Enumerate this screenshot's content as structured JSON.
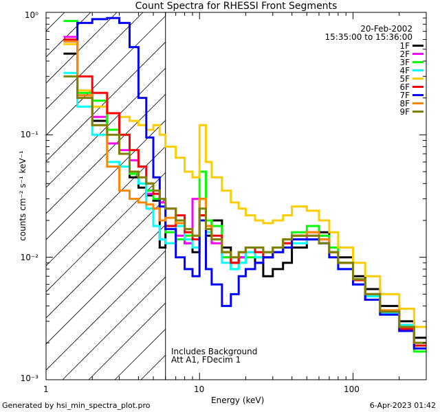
{
  "chart_data": {
    "type": "line",
    "title": "Count Spectra for RHESSI Front Segments",
    "xlabel": "Energy (keV)",
    "ylabel": "counts cm⁻² s⁻¹ keV⁻¹",
    "xscale": "log",
    "yscale": "log",
    "xlim": [
      1,
      300
    ],
    "ylim": [
      0.001,
      1
    ],
    "x_ticks": [
      {
        "v": 1,
        "label": "1"
      },
      {
        "v": 10,
        "label": "10"
      },
      {
        "v": 100,
        "label": "100"
      }
    ],
    "y_ticks": [
      {
        "v": 1,
        "label": "10⁰"
      },
      {
        "v": 0.1,
        "label": "10⁻¹"
      },
      {
        "v": 0.01,
        "label": "10⁻²"
      },
      {
        "v": 0.001,
        "label": "10⁻³"
      }
    ],
    "shaded_region_keV": [
      1,
      6
    ],
    "header": {
      "date": "20-Feb-2002",
      "time_range": "15:35:00 to 15:36:00"
    },
    "annotation": [
      "Includes Background",
      "Att A1, FDecim  1"
    ],
    "energy_edges_keV": [
      1.3,
      1.6,
      2,
      2.5,
      3,
      3.5,
      4,
      4.5,
      5,
      5.5,
      6,
      7,
      8,
      9,
      10,
      11,
      12,
      14,
      16,
      18,
      20,
      23,
      26,
      30,
      35,
      40,
      50,
      60,
      70,
      80,
      100,
      120,
      150,
      200,
      250,
      300
    ],
    "series": [
      {
        "name": "1F",
        "color": "#000000",
        "values": [
          0.46,
          0.21,
          0.13,
          0.11,
          0.07,
          0.045,
          0.037,
          0.032,
          0.029,
          0.012,
          0.018,
          0.02,
          0.013,
          0.011,
          0.03,
          0.015,
          0.02,
          0.012,
          0.009,
          0.01,
          0.012,
          0.009,
          0.007,
          0.008,
          0.009,
          0.012,
          0.014,
          0.016,
          0.012,
          0.01,
          0.007,
          0.0055,
          0.004,
          0.003,
          0.0022
        ]
      },
      {
        "name": "2F",
        "color": "#ff00ff",
        "values": [
          0.63,
          0.21,
          0.14,
          0.085,
          0.075,
          0.062,
          0.055,
          0.033,
          0.03,
          0.028,
          0.025,
          0.015,
          0.013,
          0.03,
          0.022,
          0.02,
          0.013,
          0.01,
          0.009,
          0.01,
          0.011,
          0.012,
          0.01,
          0.011,
          0.013,
          0.014,
          0.015,
          0.015,
          0.011,
          0.009,
          0.006,
          0.0045,
          0.0035,
          0.0028,
          0.0018
        ]
      },
      {
        "name": "3F",
        "color": "#00ff00",
        "values": [
          0.85,
          0.22,
          0.19,
          0.11,
          0.1,
          0.048,
          0.04,
          0.035,
          0.03,
          0.026,
          0.016,
          0.014,
          0.015,
          0.012,
          0.05,
          0.02,
          0.018,
          0.01,
          0.008,
          0.009,
          0.01,
          0.01,
          0.011,
          0.012,
          0.014,
          0.016,
          0.018,
          0.015,
          0.012,
          0.009,
          0.0065,
          0.005,
          0.0035,
          0.0025,
          0.0017
        ]
      },
      {
        "name": "4F",
        "color": "#00ffff",
        "values": [
          0.32,
          0.17,
          0.1,
          0.06,
          0.055,
          0.05,
          0.04,
          0.025,
          0.018,
          0.014,
          0.013,
          0.018,
          0.014,
          0.012,
          0.02,
          0.016,
          0.014,
          0.009,
          0.008,
          0.009,
          0.011,
          0.01,
          0.01,
          0.011,
          0.012,
          0.013,
          0.014,
          0.013,
          0.011,
          0.008,
          0.006,
          0.0048,
          0.0035,
          0.0028,
          0.0019
        ]
      },
      {
        "name": "5F",
        "color": "#ffcc00",
        "values": [
          0.55,
          0.23,
          0.17,
          0.15,
          0.14,
          0.13,
          0.12,
          0.11,
          0.12,
          0.1,
          0.08,
          0.065,
          0.05,
          0.045,
          0.12,
          0.06,
          0.045,
          0.035,
          0.028,
          0.025,
          0.022,
          0.02,
          0.019,
          0.02,
          0.022,
          0.026,
          0.024,
          0.02,
          0.016,
          0.012,
          0.009,
          0.007,
          0.005,
          0.0038,
          0.0027
        ]
      },
      {
        "name": "6F",
        "color": "#ff0000",
        "values": [
          0.6,
          0.3,
          0.22,
          0.15,
          0.1,
          0.075,
          0.055,
          0.04,
          0.033,
          0.02,
          0.018,
          0.022,
          0.016,
          0.014,
          0.022,
          0.018,
          0.015,
          0.011,
          0.009,
          0.011,
          0.012,
          0.011,
          0.01,
          0.012,
          0.013,
          0.015,
          0.016,
          0.014,
          0.011,
          0.009,
          0.0065,
          0.005,
          0.0036,
          0.0026,
          0.0019
        ]
      },
      {
        "name": "7F",
        "color": "#0000ff",
        "values": [
          0.58,
          0.82,
          0.88,
          0.9,
          0.82,
          0.52,
          0.2,
          0.095,
          0.045,
          0.026,
          0.017,
          0.01,
          0.008,
          0.007,
          0.02,
          0.008,
          0.006,
          0.004,
          0.005,
          0.007,
          0.008,
          0.009,
          0.01,
          0.011,
          0.012,
          0.014,
          0.014,
          0.013,
          0.01,
          0.008,
          0.006,
          0.0045,
          0.0034,
          0.0025,
          0.0018
        ]
      },
      {
        "name": "8F",
        "color": "#ff8800",
        "values": [
          0.58,
          0.21,
          0.12,
          0.055,
          0.035,
          0.03,
          0.028,
          0.027,
          0.025,
          0.02,
          0.021,
          0.019,
          0.017,
          0.015,
          0.03,
          0.018,
          0.014,
          0.011,
          0.01,
          0.011,
          0.012,
          0.012,
          0.011,
          0.012,
          0.014,
          0.015,
          0.016,
          0.014,
          0.011,
          0.009,
          0.0066,
          0.005,
          0.0037,
          0.0027,
          0.002
        ]
      },
      {
        "name": "9F",
        "color": "#808000",
        "values": [
          0.3,
          0.2,
          0.12,
          0.1,
          0.07,
          0.05,
          0.045,
          0.04,
          0.035,
          0.03,
          0.025,
          0.02,
          0.017,
          0.015,
          0.025,
          0.017,
          0.014,
          0.011,
          0.01,
          0.011,
          0.012,
          0.012,
          0.011,
          0.012,
          0.014,
          0.015,
          0.015,
          0.013,
          0.011,
          0.009,
          0.0066,
          0.005,
          0.0036,
          0.0027,
          0.002
        ]
      }
    ]
  },
  "footer": {
    "generated_by": "Generated by hsi_min_spectra_plot.pro",
    "timestamp": "6-Apr-2023 01:42"
  }
}
